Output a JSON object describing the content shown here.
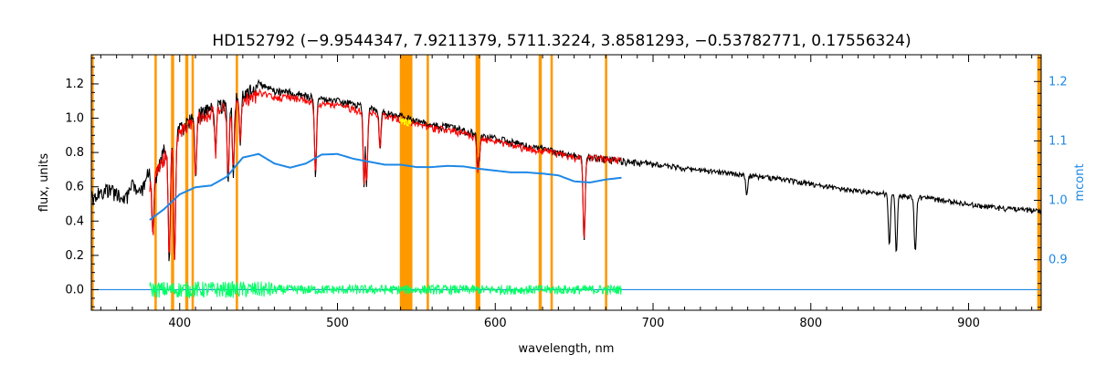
{
  "chart_data": {
    "type": "line",
    "title": "HD152792   (−9.9544347, 7.9211379, 5711.3224, 3.8581293, −0.53782771, 0.17556324)",
    "xlabel": "wavelength, nm",
    "ylabel": "flux, units",
    "y2label": "mcont",
    "xlim": [
      344,
      946
    ],
    "ylim": [
      -0.12,
      1.37
    ],
    "y2lim": [
      0.815,
      1.245
    ],
    "x_ticks": [
      400,
      500,
      600,
      700,
      800,
      900
    ],
    "y_ticks": [
      0.0,
      0.2,
      0.4,
      0.6,
      0.8,
      1.0,
      1.2
    ],
    "y2_ticks": [
      0.9,
      1.0,
      1.1,
      1.2
    ],
    "grid": false,
    "colors": {
      "observed": "#000000",
      "model": "#ff0000",
      "masked_model": "#ffff00",
      "residual": "#00ff66",
      "continuum": "#1e88e5",
      "mask_bands": "#ff9900"
    },
    "mask_bands": [
      [
        344.0,
        345.5
      ],
      [
        384.0,
        385.5
      ],
      [
        394.5,
        396.5
      ],
      [
        403.5,
        405.5
      ],
      [
        407.5,
        409.0
      ],
      [
        435.5,
        437.0
      ],
      [
        539.5,
        547.5
      ],
      [
        556.5,
        558.0
      ],
      [
        587.5,
        590.5
      ],
      [
        627.5,
        629.5
      ],
      [
        635.0,
        636.5
      ],
      [
        669.5,
        671.0
      ],
      [
        943.5,
        946.0
      ]
    ],
    "series": [
      {
        "role": "observed",
        "x": [
          344,
          350,
          355,
          360,
          365,
          370,
          375,
          380,
          385,
          390,
          395,
          400,
          410,
          420,
          430,
          440,
          450,
          460,
          470,
          480,
          490,
          500,
          510,
          520,
          530,
          540,
          550,
          560,
          570,
          580,
          590,
          600,
          610,
          620,
          630,
          640,
          650,
          660,
          670,
          680,
          690,
          700,
          720,
          740,
          760,
          780,
          800,
          820,
          840,
          860,
          880,
          900,
          920,
          946
        ],
        "y": [
          0.58,
          0.6,
          0.62,
          0.6,
          0.55,
          0.65,
          0.6,
          0.72,
          0.7,
          0.85,
          0.9,
          0.97,
          1.05,
          1.1,
          1.12,
          1.18,
          1.22,
          1.18,
          1.17,
          1.15,
          1.13,
          1.12,
          1.1,
          1.08,
          1.05,
          1.03,
          1.0,
          0.98,
          0.97,
          0.95,
          0.92,
          0.9,
          0.88,
          0.86,
          0.84,
          0.82,
          0.8,
          0.79,
          0.78,
          0.77,
          0.76,
          0.75,
          0.72,
          0.7,
          0.68,
          0.66,
          0.63,
          0.6,
          0.58,
          0.56,
          0.54,
          0.51,
          0.49,
          0.47
        ]
      },
      {
        "role": "model",
        "x": [
          381,
          390,
          400,
          410,
          420,
          430,
          440,
          450,
          460,
          470,
          480,
          490,
          500,
          510,
          520,
          530,
          540,
          550,
          560,
          570,
          580,
          590,
          600,
          610,
          620,
          630,
          640,
          650,
          660,
          670,
          680
        ],
        "y": [
          0.65,
          0.8,
          0.95,
          1.03,
          1.07,
          1.1,
          1.14,
          1.17,
          1.14,
          1.14,
          1.12,
          1.1,
          1.09,
          1.07,
          1.05,
          1.03,
          1.01,
          0.98,
          0.96,
          0.95,
          0.93,
          0.9,
          0.88,
          0.86,
          0.84,
          0.83,
          0.81,
          0.79,
          0.79,
          0.78,
          0.77
        ]
      },
      {
        "role": "continuum",
        "axis": "right",
        "x": [
          381,
          390,
          400,
          410,
          420,
          430,
          440,
          450,
          460,
          470,
          480,
          490,
          500,
          510,
          520,
          530,
          540,
          550,
          560,
          570,
          580,
          590,
          600,
          610,
          620,
          630,
          640,
          650,
          660,
          670,
          680
        ],
        "y": [
          0.967,
          0.985,
          1.01,
          1.022,
          1.025,
          1.04,
          1.072,
          1.078,
          1.062,
          1.055,
          1.062,
          1.077,
          1.078,
          1.07,
          1.065,
          1.06,
          1.06,
          1.056,
          1.056,
          1.058,
          1.057,
          1.053,
          1.05,
          1.047,
          1.047,
          1.045,
          1.042,
          1.032,
          1.03,
          1.035,
          1.038
        ]
      },
      {
        "role": "residual",
        "x": [
          381,
          680
        ],
        "y": [
          0.0,
          0.0
        ],
        "noise": 0.04
      },
      {
        "role": "zero_line",
        "x": [
          344,
          946
        ],
        "y": [
          0.0,
          0.0
        ]
      }
    ],
    "absorption_lines": [
      {
        "x": 383,
        "depth": 0.35
      },
      {
        "x": 393.4,
        "depth": 0.7
      },
      {
        "x": 396.8,
        "depth": 0.7
      },
      {
        "x": 410.2,
        "depth": 0.35
      },
      {
        "x": 422.7,
        "depth": 0.25
      },
      {
        "x": 430.8,
        "depth": 0.45
      },
      {
        "x": 434.0,
        "depth": 0.4
      },
      {
        "x": 438.4,
        "depth": 0.25
      },
      {
        "x": 486.1,
        "depth": 0.45
      },
      {
        "x": 516.9,
        "depth": 0.45
      },
      {
        "x": 518.4,
        "depth": 0.45
      },
      {
        "x": 527.0,
        "depth": 0.2
      },
      {
        "x": 589.0,
        "depth": 0.2
      },
      {
        "x": 589.6,
        "depth": 0.15
      },
      {
        "x": 656.3,
        "depth": 0.5
      },
      {
        "x": 759.4,
        "depth": 0.12
      },
      {
        "x": 849.8,
        "depth": 0.3
      },
      {
        "x": 854.2,
        "depth": 0.35
      },
      {
        "x": 866.2,
        "depth": 0.33
      }
    ]
  }
}
